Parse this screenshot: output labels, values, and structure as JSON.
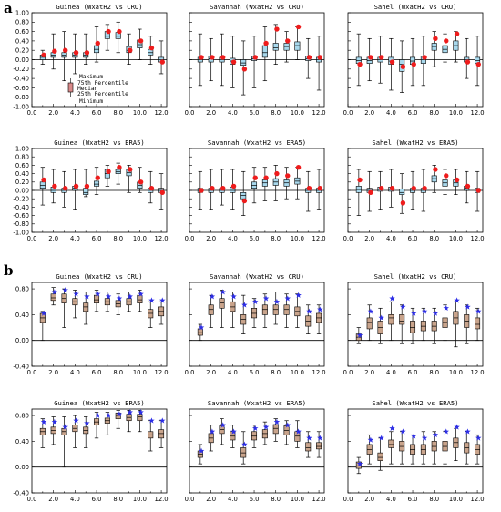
{
  "figure": {
    "section_a_label": "a",
    "section_b_label": "b",
    "legend_entries": [
      "Maximum",
      "75th Percentile",
      "Median",
      "25th Percentile",
      "Minimum"
    ]
  },
  "colors": {
    "box_a": "#a8d8ec",
    "box_b": "#c9a48c",
    "marker_a": "#ee1c1c",
    "marker_b": "#2d2ee6"
  },
  "chart_data": [
    {
      "section": "a",
      "type": "box",
      "title": "Guinea (WxatH2 vs CRU)",
      "x": [
        1,
        2,
        3,
        4,
        5,
        6,
        7,
        8,
        9,
        10,
        11,
        12
      ],
      "ylim": [
        -1.0,
        1.0
      ],
      "yticks": [
        "-1.00",
        "-0.80",
        "-0.60",
        "-0.40",
        "-0.20",
        "0.00",
        "0.20",
        "0.40",
        "0.60",
        "0.80",
        "1.00"
      ],
      "xticks": [
        "0.0",
        "2.0",
        "4.0",
        "6.0",
        "8.0",
        "10.0",
        "12.0"
      ],
      "min": [
        -0.1,
        -0.2,
        -0.45,
        -0.3,
        -0.1,
        -0.05,
        0.2,
        0.15,
        -0.1,
        0.0,
        -0.1,
        -0.3
      ],
      "q1": [
        0.0,
        0.05,
        0.05,
        0.05,
        0.05,
        0.15,
        0.45,
        0.45,
        0.15,
        0.25,
        0.1,
        -0.05
      ],
      "median": [
        0.05,
        0.1,
        0.1,
        0.1,
        0.1,
        0.22,
        0.5,
        0.5,
        0.2,
        0.32,
        0.15,
        0.0
      ],
      "q3": [
        0.1,
        0.15,
        0.15,
        0.15,
        0.15,
        0.3,
        0.6,
        0.58,
        0.28,
        0.42,
        0.22,
        0.05
      ],
      "max": [
        0.2,
        0.55,
        0.6,
        0.55,
        0.55,
        0.7,
        0.75,
        0.8,
        0.55,
        0.65,
        0.5,
        0.4
      ],
      "marker": [
        0.1,
        0.18,
        0.2,
        0.15,
        0.15,
        0.35,
        0.6,
        0.6,
        0.2,
        0.4,
        0.25,
        -0.05
      ]
    },
    {
      "section": "a",
      "type": "box",
      "title": "Savannah (WxatH2 vs CRU)",
      "x": [
        1,
        2,
        3,
        4,
        5,
        6,
        7,
        8,
        9,
        10,
        11,
        12
      ],
      "ylim": [
        -1.0,
        1.0
      ],
      "yticks": [],
      "xticks": [
        "0.0",
        "2.0",
        "4.0",
        "6.0",
        "8.0",
        "10.0",
        "12.0"
      ],
      "min": [
        -0.55,
        -0.45,
        -0.55,
        -0.6,
        -0.75,
        -0.6,
        -0.45,
        -0.1,
        -0.05,
        0.0,
        -0.4,
        -0.65
      ],
      "q1": [
        -0.05,
        -0.05,
        -0.05,
        -0.1,
        -0.12,
        -0.02,
        0.05,
        0.2,
        0.2,
        0.2,
        -0.02,
        -0.05
      ],
      "median": [
        0.0,
        0.02,
        0.0,
        -0.03,
        -0.07,
        0.02,
        0.15,
        0.25,
        0.28,
        0.3,
        0.02,
        0.0
      ],
      "q3": [
        0.05,
        0.08,
        0.05,
        0.03,
        0.0,
        0.08,
        0.3,
        0.35,
        0.35,
        0.38,
        0.08,
        0.05
      ],
      "max": [
        0.55,
        0.45,
        0.55,
        0.5,
        0.4,
        0.5,
        0.7,
        0.75,
        0.6,
        0.7,
        0.45,
        0.5
      ],
      "marker": [
        0.05,
        0.05,
        0.05,
        -0.05,
        -0.2,
        0.05,
        0.35,
        0.65,
        0.4,
        0.7,
        0.05,
        0.05
      ]
    },
    {
      "section": "a",
      "type": "box",
      "title": "Sahel (WxatH2 vs CRU)",
      "x": [
        1,
        2,
        3,
        4,
        5,
        6,
        7,
        8,
        9,
        10,
        11,
        12
      ],
      "ylim": [
        -1.0,
        1.0
      ],
      "yticks": [],
      "xticks": [
        "0.0",
        "2.0",
        "4.0",
        "6.0",
        "8.0",
        "10.0",
        "12.0"
      ],
      "min": [
        -0.55,
        -0.45,
        -0.5,
        -0.65,
        -0.7,
        -0.55,
        -0.55,
        -0.15,
        -0.05,
        -0.05,
        -0.4,
        -0.55
      ],
      "q1": [
        -0.08,
        -0.08,
        -0.05,
        -0.1,
        -0.25,
        -0.1,
        -0.08,
        0.2,
        0.15,
        0.2,
        -0.05,
        -0.08
      ],
      "median": [
        -0.02,
        -0.02,
        0.0,
        -0.03,
        -0.1,
        -0.03,
        0.0,
        0.28,
        0.22,
        0.3,
        0.0,
        -0.02
      ],
      "q3": [
        0.05,
        0.05,
        0.05,
        0.05,
        0.0,
        0.05,
        0.08,
        0.35,
        0.3,
        0.4,
        0.05,
        0.05
      ],
      "max": [
        0.55,
        0.45,
        0.5,
        0.45,
        0.4,
        0.45,
        0.5,
        0.6,
        0.55,
        0.6,
        0.45,
        0.5
      ],
      "marker": [
        -0.1,
        0.05,
        0.05,
        -0.05,
        -0.15,
        -0.1,
        0.05,
        0.45,
        0.4,
        0.55,
        -0.05,
        -0.1
      ]
    },
    {
      "section": "a",
      "type": "box",
      "title": "Guinea (WxatH2 vs ERA5)",
      "x": [
        1,
        2,
        3,
        4,
        5,
        6,
        7,
        8,
        9,
        10,
        11,
        12
      ],
      "ylim": [
        -1.0,
        1.0
      ],
      "yticks": [
        "-1.00",
        "-0.80",
        "-0.60",
        "-0.40",
        "-0.20",
        "0.00",
        "0.20",
        "0.40",
        "0.60",
        "0.80",
        "1.00"
      ],
      "xticks": [
        "0.0",
        "2.0",
        "4.0",
        "6.0",
        "8.0",
        "10.0",
        "12.0"
      ],
      "min": [
        -0.35,
        -0.3,
        -0.4,
        -0.45,
        -0.15,
        -0.1,
        0.1,
        0.15,
        -0.05,
        -0.05,
        -0.3,
        -0.45
      ],
      "q1": [
        0.05,
        -0.05,
        -0.05,
        0.0,
        -0.1,
        0.1,
        0.3,
        0.4,
        0.35,
        0.05,
        -0.05,
        -0.05
      ],
      "median": [
        0.12,
        0.0,
        0.0,
        0.05,
        -0.05,
        0.15,
        0.4,
        0.45,
        0.42,
        0.12,
        0.0,
        0.0
      ],
      "q3": [
        0.2,
        0.08,
        0.05,
        0.1,
        0.05,
        0.22,
        0.5,
        0.5,
        0.5,
        0.2,
        0.05,
        0.05
      ],
      "max": [
        0.55,
        0.5,
        0.45,
        0.5,
        0.5,
        0.55,
        0.6,
        0.65,
        0.6,
        0.55,
        0.45,
        0.4
      ],
      "marker": [
        0.25,
        0.1,
        0.05,
        0.1,
        0.1,
        0.3,
        0.45,
        0.55,
        0.5,
        0.2,
        0.05,
        -0.05
      ]
    },
    {
      "section": "a",
      "type": "box",
      "title": "Savannah (WxatH2 vs ERA5)",
      "x": [
        1,
        2,
        3,
        4,
        5,
        6,
        7,
        8,
        9,
        10,
        11,
        12
      ],
      "ylim": [
        -1.0,
        1.0
      ],
      "yticks": [],
      "xticks": [
        "0.0",
        "2.0",
        "4.0",
        "6.0",
        "8.0",
        "10.0",
        "12.0"
      ],
      "min": [
        -0.45,
        -0.45,
        -0.35,
        -0.45,
        -0.6,
        -0.3,
        -0.25,
        -0.25,
        -0.2,
        -0.2,
        -0.5,
        -0.45
      ],
      "q1": [
        -0.05,
        -0.05,
        -0.05,
        -0.05,
        -0.2,
        0.05,
        0.1,
        0.12,
        0.1,
        0.15,
        -0.05,
        -0.05
      ],
      "median": [
        0.0,
        0.0,
        0.0,
        0.0,
        -0.12,
        0.12,
        0.18,
        0.2,
        0.18,
        0.22,
        0.0,
        0.0
      ],
      "q3": [
        0.05,
        0.05,
        0.05,
        0.08,
        -0.05,
        0.2,
        0.25,
        0.28,
        0.25,
        0.3,
        0.05,
        0.05
      ],
      "max": [
        0.45,
        0.5,
        0.5,
        0.5,
        0.45,
        0.55,
        0.55,
        0.6,
        0.55,
        0.55,
        0.45,
        0.5
      ],
      "marker": [
        0.0,
        0.05,
        0.05,
        0.1,
        -0.25,
        0.3,
        0.3,
        0.4,
        0.35,
        0.55,
        0.05,
        0.05
      ]
    },
    {
      "section": "a",
      "type": "box",
      "title": "Sahel (WxatH2 vs ERA5)",
      "x": [
        1,
        2,
        3,
        4,
        5,
        6,
        7,
        8,
        9,
        10,
        11,
        12
      ],
      "ylim": [
        -1.0,
        1.0
      ],
      "yticks": [],
      "xticks": [
        "0.0",
        "2.0",
        "4.0",
        "6.0",
        "8.0",
        "10.0",
        "12.0"
      ],
      "min": [
        -0.6,
        -0.5,
        -0.45,
        -0.4,
        -0.55,
        -0.45,
        -0.5,
        -0.05,
        -0.1,
        -0.1,
        -0.3,
        -0.5
      ],
      "q1": [
        -0.05,
        -0.05,
        -0.02,
        -0.02,
        -0.1,
        -0.05,
        -0.05,
        0.2,
        0.1,
        0.1,
        0.0,
        -0.05
      ],
      "median": [
        0.02,
        0.0,
        0.02,
        0.02,
        -0.05,
        0.0,
        0.0,
        0.28,
        0.18,
        0.18,
        0.05,
        0.0
      ],
      "q3": [
        0.1,
        0.05,
        0.08,
        0.08,
        0.03,
        0.05,
        0.05,
        0.35,
        0.25,
        0.25,
        0.1,
        0.05
      ],
      "max": [
        0.5,
        0.45,
        0.45,
        0.5,
        0.4,
        0.45,
        0.5,
        0.6,
        0.5,
        0.5,
        0.45,
        0.45
      ],
      "marker": [
        0.25,
        -0.05,
        0.05,
        0.05,
        -0.3,
        0.05,
        0.05,
        0.5,
        0.35,
        0.25,
        0.1,
        0.0
      ]
    },
    {
      "section": "b",
      "type": "box",
      "title": "Guinea (WxatH2 vs CRU)",
      "x": [
        1,
        2,
        3,
        4,
        5,
        6,
        7,
        8,
        9,
        10,
        11,
        12
      ],
      "ylim": [
        -0.4,
        0.9
      ],
      "yticks": [
        "-0.40",
        "0.00",
        "0.40",
        "0.80"
      ],
      "xticks": [
        "0.0",
        "2.0",
        "4.0",
        "6.0",
        "8.0",
        "10.0",
        "12.0"
      ],
      "min": [
        0.0,
        0.55,
        0.2,
        0.35,
        0.25,
        0.45,
        0.45,
        0.4,
        0.45,
        0.45,
        0.2,
        0.25
      ],
      "q1": [
        0.28,
        0.62,
        0.58,
        0.55,
        0.45,
        0.58,
        0.55,
        0.52,
        0.55,
        0.58,
        0.35,
        0.38
      ],
      "median": [
        0.35,
        0.66,
        0.65,
        0.6,
        0.52,
        0.63,
        0.6,
        0.57,
        0.6,
        0.63,
        0.42,
        0.45
      ],
      "q3": [
        0.42,
        0.72,
        0.72,
        0.65,
        0.58,
        0.7,
        0.65,
        0.62,
        0.65,
        0.7,
        0.48,
        0.52
      ],
      "max": [
        0.45,
        0.82,
        0.8,
        0.78,
        0.75,
        0.78,
        0.75,
        0.72,
        0.75,
        0.78,
        0.6,
        0.6
      ],
      "marker": [
        0.42,
        0.75,
        0.78,
        0.72,
        0.68,
        0.72,
        0.68,
        0.65,
        0.68,
        0.72,
        0.62,
        0.62
      ]
    },
    {
      "section": "b",
      "type": "box",
      "title": "Savannah (WxatH2 vs CRU)",
      "x": [
        1,
        2,
        3,
        4,
        5,
        6,
        7,
        8,
        9,
        10,
        11,
        12
      ],
      "ylim": [
        -0.4,
        0.9
      ],
      "yticks": [],
      "xticks": [
        "0.0",
        "2.0",
        "4.0",
        "6.0",
        "8.0",
        "10.0",
        "12.0"
      ],
      "min": [
        0.0,
        0.2,
        0.2,
        0.2,
        0.1,
        0.2,
        0.2,
        0.25,
        0.2,
        0.2,
        0.1,
        0.1
      ],
      "q1": [
        0.08,
        0.4,
        0.5,
        0.45,
        0.25,
        0.35,
        0.4,
        0.4,
        0.4,
        0.38,
        0.22,
        0.28
      ],
      "median": [
        0.12,
        0.48,
        0.58,
        0.52,
        0.33,
        0.42,
        0.48,
        0.48,
        0.48,
        0.45,
        0.3,
        0.35
      ],
      "q3": [
        0.18,
        0.55,
        0.65,
        0.6,
        0.4,
        0.5,
        0.55,
        0.55,
        0.55,
        0.52,
        0.38,
        0.42
      ],
      "max": [
        0.25,
        0.7,
        0.78,
        0.75,
        0.7,
        0.65,
        0.72,
        0.75,
        0.72,
        0.72,
        0.55,
        0.55
      ],
      "marker": [
        0.2,
        0.68,
        0.75,
        0.68,
        0.55,
        0.6,
        0.65,
        0.6,
        0.65,
        0.7,
        0.45,
        0.48
      ]
    },
    {
      "section": "b",
      "type": "box",
      "title": "Sahel (WxatH2 vs CRU)",
      "x": [
        1,
        2,
        3,
        4,
        5,
        6,
        7,
        8,
        9,
        10,
        11,
        12
      ],
      "ylim": [
        -0.4,
        0.9
      ],
      "yticks": [],
      "xticks": [
        "0.0",
        "2.0",
        "4.0",
        "6.0",
        "8.0",
        "10.0",
        "12.0"
      ],
      "min": [
        -0.05,
        0.0,
        -0.05,
        0.0,
        -0.05,
        -0.05,
        0.0,
        -0.05,
        0.0,
        -0.1,
        -0.05,
        0.0
      ],
      "q1": [
        0.0,
        0.18,
        0.1,
        0.25,
        0.25,
        0.12,
        0.15,
        0.15,
        0.2,
        0.25,
        0.2,
        0.18
      ],
      "median": [
        0.05,
        0.28,
        0.2,
        0.35,
        0.3,
        0.2,
        0.22,
        0.22,
        0.28,
        0.35,
        0.3,
        0.25
      ],
      "q3": [
        0.1,
        0.35,
        0.3,
        0.4,
        0.4,
        0.3,
        0.3,
        0.3,
        0.35,
        0.45,
        0.4,
        0.35
      ],
      "max": [
        0.2,
        0.55,
        0.5,
        0.6,
        0.55,
        0.5,
        0.5,
        0.5,
        0.55,
        0.6,
        0.55,
        0.5
      ],
      "marker": [
        0.08,
        0.45,
        0.35,
        0.65,
        0.52,
        0.42,
        0.45,
        0.42,
        0.5,
        0.62,
        0.52,
        0.45
      ]
    },
    {
      "section": "b",
      "type": "box",
      "title": "Guinea (WxatH2 vs ERA5)",
      "x": [
        1,
        2,
        3,
        4,
        5,
        6,
        7,
        8,
        9,
        10,
        11,
        12
      ],
      "ylim": [
        -0.4,
        0.9
      ],
      "yticks": [
        "-0.40",
        "0.00",
        "0.40",
        "0.80"
      ],
      "xticks": [
        "0.0",
        "2.0",
        "4.0",
        "6.0",
        "8.0",
        "10.0",
        "12.0"
      ],
      "min": [
        0.3,
        0.35,
        0.0,
        0.3,
        0.3,
        0.45,
        0.5,
        0.6,
        0.55,
        0.55,
        0.25,
        0.3
      ],
      "q1": [
        0.5,
        0.52,
        0.5,
        0.55,
        0.52,
        0.65,
        0.68,
        0.75,
        0.72,
        0.72,
        0.45,
        0.45
      ],
      "median": [
        0.55,
        0.57,
        0.55,
        0.6,
        0.57,
        0.7,
        0.72,
        0.8,
        0.77,
        0.78,
        0.5,
        0.52
      ],
      "q3": [
        0.6,
        0.62,
        0.6,
        0.65,
        0.62,
        0.75,
        0.76,
        0.84,
        0.82,
        0.82,
        0.55,
        0.58
      ],
      "max": [
        0.75,
        0.78,
        0.78,
        0.8,
        0.78,
        0.85,
        0.85,
        0.88,
        0.88,
        0.88,
        0.72,
        0.72
      ],
      "marker": [
        0.7,
        0.7,
        0.62,
        0.72,
        0.68,
        0.8,
        0.8,
        0.82,
        0.85,
        0.85,
        0.72,
        0.72
      ]
    },
    {
      "section": "b",
      "type": "box",
      "title": "Savannah (WxatH2 vs ERA5)",
      "x": [
        1,
        2,
        3,
        4,
        5,
        6,
        7,
        8,
        9,
        10,
        11,
        12
      ],
      "ylim": [
        -0.4,
        0.9
      ],
      "yticks": [],
      "xticks": [
        "0.0",
        "2.0",
        "4.0",
        "6.0",
        "8.0",
        "10.0",
        "12.0"
      ],
      "min": [
        0.05,
        0.25,
        0.35,
        0.3,
        0.05,
        0.3,
        0.35,
        0.4,
        0.35,
        0.3,
        0.15,
        0.15
      ],
      "q1": [
        0.15,
        0.38,
        0.52,
        0.42,
        0.15,
        0.42,
        0.45,
        0.52,
        0.5,
        0.4,
        0.25,
        0.28
      ],
      "median": [
        0.2,
        0.45,
        0.58,
        0.48,
        0.22,
        0.48,
        0.52,
        0.6,
        0.57,
        0.48,
        0.3,
        0.32
      ],
      "q3": [
        0.25,
        0.52,
        0.64,
        0.55,
        0.3,
        0.55,
        0.58,
        0.66,
        0.64,
        0.55,
        0.38,
        0.38
      ],
      "max": [
        0.35,
        0.65,
        0.75,
        0.65,
        0.55,
        0.65,
        0.7,
        0.75,
        0.72,
        0.72,
        0.55,
        0.55
      ],
      "marker": [
        0.25,
        0.55,
        0.65,
        0.55,
        0.35,
        0.6,
        0.62,
        0.7,
        0.65,
        0.55,
        0.45,
        0.45
      ]
    },
    {
      "section": "b",
      "type": "box",
      "title": "Sahel (WxatH2 vs ERA5)",
      "x": [
        1,
        2,
        3,
        4,
        5,
        6,
        7,
        8,
        9,
        10,
        11,
        12
      ],
      "ylim": [
        -0.4,
        0.9
      ],
      "yticks": [],
      "xticks": [
        "0.0",
        "2.0",
        "4.0",
        "6.0",
        "8.0",
        "10.0",
        "12.0"
      ],
      "min": [
        -0.1,
        0.05,
        -0.05,
        0.05,
        0.05,
        0.05,
        0.05,
        0.05,
        0.05,
        0.1,
        0.05,
        0.05
      ],
      "q1": [
        -0.02,
        0.2,
        0.1,
        0.3,
        0.25,
        0.2,
        0.2,
        0.25,
        0.25,
        0.3,
        0.22,
        0.2
      ],
      "median": [
        0.02,
        0.27,
        0.15,
        0.35,
        0.32,
        0.27,
        0.27,
        0.32,
        0.32,
        0.38,
        0.3,
        0.27
      ],
      "q3": [
        0.08,
        0.35,
        0.22,
        0.42,
        0.4,
        0.35,
        0.35,
        0.4,
        0.4,
        0.45,
        0.38,
        0.35
      ],
      "max": [
        0.15,
        0.5,
        0.45,
        0.55,
        0.55,
        0.5,
        0.55,
        0.55,
        0.55,
        0.6,
        0.55,
        0.5
      ],
      "marker": [
        0.05,
        0.42,
        0.45,
        0.6,
        0.55,
        0.48,
        0.45,
        0.5,
        0.55,
        0.62,
        0.55,
        0.45
      ]
    }
  ]
}
